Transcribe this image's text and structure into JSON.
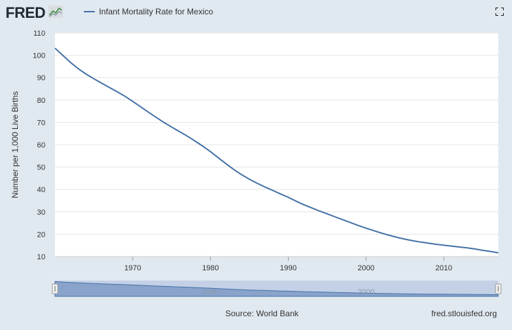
{
  "header": {
    "logo_text": "FRED",
    "legend_label": "Infant Mortality Rate for Mexico"
  },
  "colors": {
    "series": "#4572a7",
    "plot_bg": "#ffffff",
    "page_bg": "#e1e9f0",
    "grid": "#e6e6e6",
    "navigator_fill": "#7f9bc6",
    "navigator_bg": "#c3d0e6"
  },
  "icons": {
    "logo": "fred-chart-icon",
    "fullscreen": "fullscreen-icon"
  },
  "footer": {
    "source": "Source: World Bank",
    "link": "fred.stlouisfed.org"
  },
  "navigator": {
    "tick_labels": [
      "1980",
      "2000"
    ]
  },
  "chart_data": {
    "type": "line",
    "title": "",
    "xlabel": "",
    "ylabel": "Number per 1,000 Live Births",
    "xlim": [
      1960,
      2017
    ],
    "ylim": [
      10,
      110
    ],
    "y_ticks": [
      10,
      20,
      30,
      40,
      50,
      60,
      70,
      80,
      90,
      100,
      110
    ],
    "x_ticks": [
      1970,
      1980,
      1990,
      2000,
      2010
    ],
    "grid": true,
    "legend": "top-left",
    "series": [
      {
        "name": "Infant Mortality Rate for Mexico",
        "x": [
          1960,
          1961,
          1962,
          1963,
          1964,
          1965,
          1966,
          1967,
          1968,
          1969,
          1970,
          1971,
          1972,
          1973,
          1974,
          1975,
          1976,
          1977,
          1978,
          1979,
          1980,
          1981,
          1982,
          1983,
          1984,
          1985,
          1986,
          1987,
          1988,
          1989,
          1990,
          1991,
          1992,
          1993,
          1994,
          1995,
          1996,
          1997,
          1998,
          1999,
          2000,
          2001,
          2002,
          2003,
          2004,
          2005,
          2006,
          2007,
          2008,
          2009,
          2010,
          2011,
          2012,
          2013,
          2014,
          2015,
          2016,
          2017
        ],
        "values": [
          103.2,
          100.0,
          96.8,
          94.0,
          91.6,
          89.5,
          87.5,
          85.6,
          83.7,
          81.7,
          79.4,
          77.0,
          74.6,
          72.3,
          70.0,
          67.9,
          65.9,
          63.9,
          61.7,
          59.4,
          56.9,
          54.2,
          51.5,
          48.9,
          46.6,
          44.6,
          42.8,
          41.1,
          39.6,
          38.0,
          36.5,
          34.8,
          33.2,
          31.8,
          30.4,
          29.1,
          27.8,
          26.5,
          25.2,
          23.9,
          22.7,
          21.6,
          20.5,
          19.5,
          18.6,
          17.8,
          17.1,
          16.5,
          16.0,
          15.5,
          15.1,
          14.7,
          14.3,
          13.9,
          13.4,
          12.8,
          12.3,
          11.7
        ]
      }
    ]
  }
}
